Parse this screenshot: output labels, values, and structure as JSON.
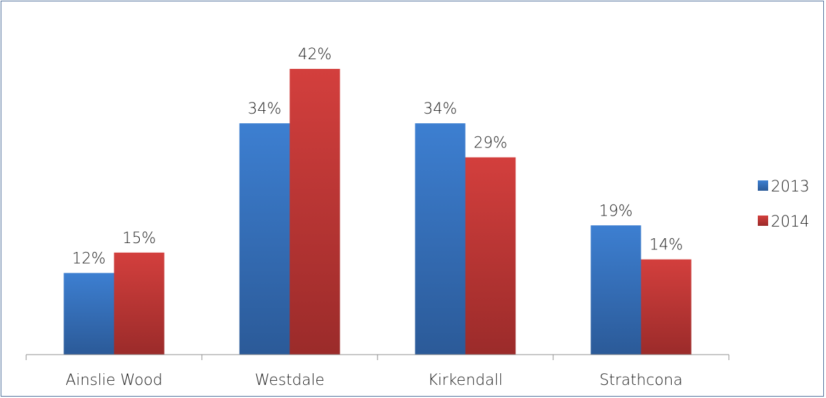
{
  "chart_data": {
    "type": "bar",
    "categories": [
      "Ainslie Wood",
      "Westdale",
      "Kirkendall",
      "Strathcona"
    ],
    "series": [
      {
        "name": "2013",
        "values": [
          12,
          34,
          34,
          19
        ],
        "labels": [
          "12%",
          "34%",
          "34%",
          "19%"
        ],
        "color": "#3b78c9"
      },
      {
        "name": "2014",
        "values": [
          15,
          42,
          29,
          14
        ],
        "labels": [
          "15%",
          "42%",
          "29%",
          "14%"
        ],
        "color": "#cc3a39"
      }
    ],
    "ylim": [
      0,
      50
    ],
    "grid": false,
    "legend": "right"
  }
}
